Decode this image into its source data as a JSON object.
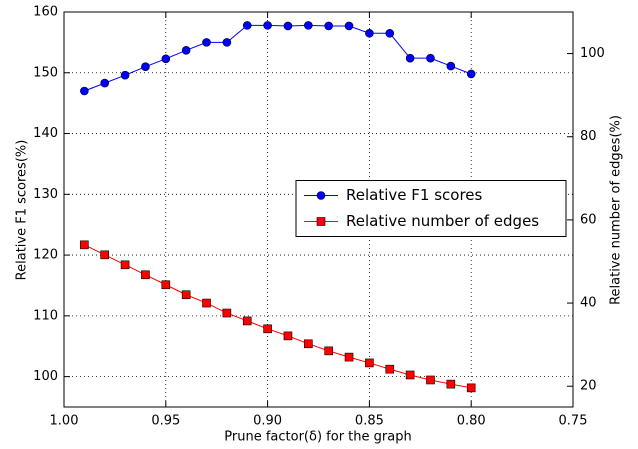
{
  "chart_data": {
    "type": "line",
    "x_label": "Prune factor(δ) for the graph",
    "y_label": "Relative F1 scores(%)",
    "y2_label": "Relative number of edges(%)",
    "x": [
      0.99,
      0.98,
      0.97,
      0.96,
      0.95,
      0.94,
      0.93,
      0.92,
      0.91,
      0.9,
      0.89,
      0.88,
      0.87,
      0.86,
      0.85,
      0.84,
      0.83,
      0.82,
      0.81,
      0.8
    ],
    "series": [
      {
        "name": "Relative F1 scores",
        "color": "#0000ff",
        "marker": "circle",
        "values": [
          147.0,
          148.3,
          149.6,
          151.0,
          152.3,
          153.7,
          155.0,
          155.0,
          157.8,
          157.8,
          157.7,
          157.8,
          157.7,
          157.7,
          156.5,
          156.5,
          152.4,
          152.4,
          151.1,
          149.8
        ]
      },
      {
        "name": "Relative number of edges",
        "color": "#ff0000",
        "marker": "square",
        "axis": "y2",
        "values": [
          54.0,
          51.6,
          49.2,
          46.8,
          44.4,
          42.0,
          40.0,
          37.6,
          35.7,
          33.8,
          32.1,
          30.2,
          28.5,
          27.0,
          25.6,
          24.1,
          22.7,
          21.5,
          20.5,
          19.6
        ]
      }
    ],
    "xlim": [
      1.0,
      0.75
    ],
    "xticks": [
      {
        "value": 1.0,
        "label": "1.00"
      },
      0.95,
      {
        "value": 0.9,
        "label": "0.90"
      },
      0.85,
      {
        "value": 0.8,
        "label": "0.80"
      },
      0.75
    ],
    "ylim": [
      95,
      160
    ],
    "yticks": [
      100,
      110,
      120,
      130,
      140,
      150,
      160
    ],
    "y2lim": [
      15,
      110
    ],
    "y2ticks": [
      20,
      40,
      60,
      80,
      100
    ],
    "grid": true,
    "legend": "center right"
  }
}
